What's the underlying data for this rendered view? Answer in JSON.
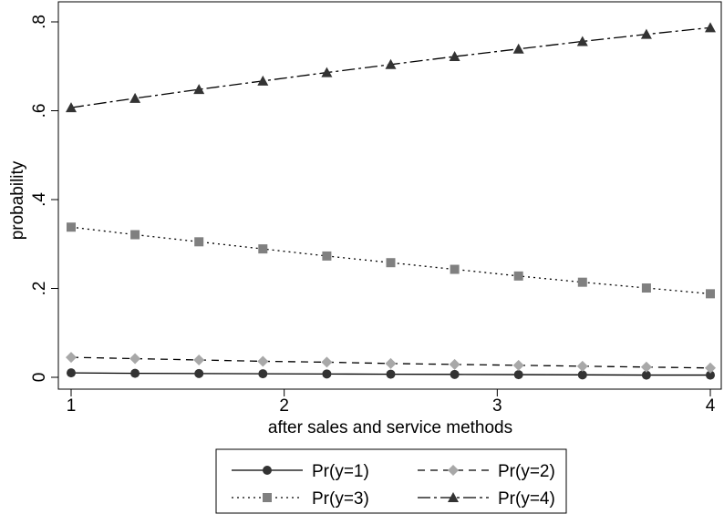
{
  "chart_data": {
    "type": "line",
    "title": "",
    "xlabel": "after sales and service methods",
    "ylabel": "probability",
    "xlim": [
      1,
      4
    ],
    "ylim": [
      0,
      0.8
    ],
    "x_ticks": [
      1,
      2,
      3,
      4
    ],
    "x_tick_labels": [
      "1",
      "2",
      "3",
      "4"
    ],
    "y_ticks": [
      0,
      0.2,
      0.4,
      0.6,
      0.8
    ],
    "y_tick_labels": [
      "0",
      ".2",
      ".4",
      ".6",
      ".8"
    ],
    "grid": false,
    "legend_position": "bottom",
    "x": [
      1,
      1.3,
      1.6,
      1.9,
      2.2,
      2.5,
      2.8,
      3.1,
      3.4,
      3.7,
      4
    ],
    "series": [
      {
        "name": "Pr(y=1)",
        "line": "solid",
        "marker": "circle",
        "color": "#333333",
        "values": [
          0.01,
          0.009,
          0.0085,
          0.008,
          0.0075,
          0.007,
          0.0065,
          0.006,
          0.0055,
          0.005,
          0.005
        ]
      },
      {
        "name": "Pr(y=2)",
        "line": "dash",
        "marker": "diamond",
        "color": "#a8a8a8",
        "values": [
          0.045,
          0.042,
          0.039,
          0.036,
          0.034,
          0.031,
          0.029,
          0.027,
          0.025,
          0.023,
          0.021
        ]
      },
      {
        "name": "Pr(y=3)",
        "line": "dot",
        "marker": "square",
        "color": "#808080",
        "values": [
          0.338,
          0.321,
          0.305,
          0.289,
          0.273,
          0.258,
          0.243,
          0.228,
          0.214,
          0.201,
          0.188
        ]
      },
      {
        "name": "Pr(y=4)",
        "line": "longdashdot",
        "marker": "triangle",
        "color": "#333333",
        "values": [
          0.607,
          0.628,
          0.648,
          0.667,
          0.686,
          0.704,
          0.722,
          0.739,
          0.756,
          0.772,
          0.787
        ]
      }
    ]
  }
}
